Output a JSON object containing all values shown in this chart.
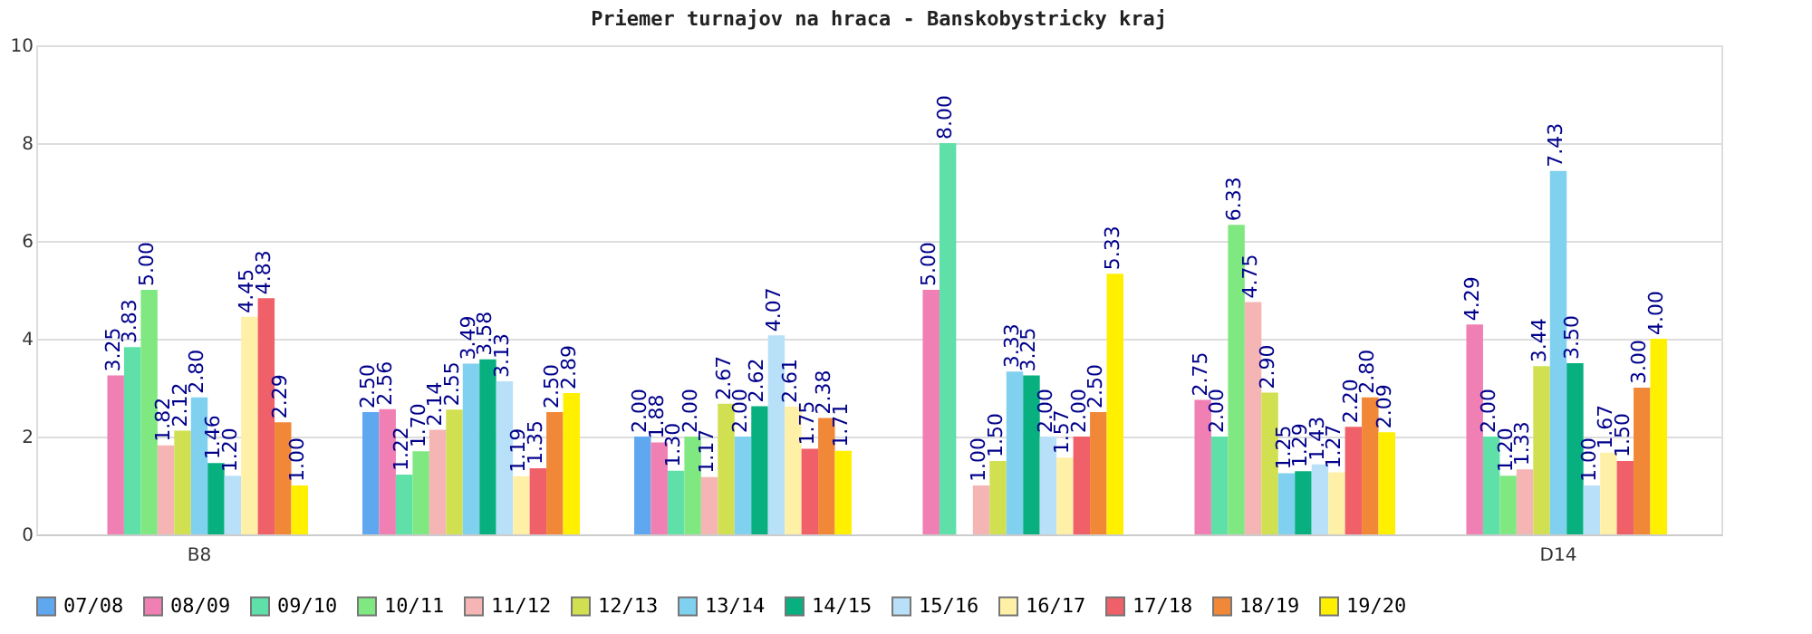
{
  "chart_data": {
    "type": "bar",
    "title": "Priemer turnajov na hraca - Banskobystricky kraj",
    "categories": [
      "B8",
      null,
      null,
      null,
      null,
      "D14"
    ],
    "series": [
      {
        "name": "07/08",
        "color": "#5fa8f0",
        "values": [
          null,
          2.5,
          2.0,
          null,
          null,
          null
        ],
        "value_labels": [
          null,
          "2.50",
          "2.00",
          null,
          null,
          null
        ]
      },
      {
        "name": "08/09",
        "color": "#f07fb4",
        "values": [
          3.25,
          2.56,
          1.88,
          5.0,
          2.75,
          4.29
        ],
        "value_labels": [
          "3.25",
          "2.56",
          "1.88",
          "5.00",
          "2.75",
          "4.29"
        ]
      },
      {
        "name": "09/10",
        "color": "#5fe0a8",
        "values": [
          3.83,
          1.22,
          1.3,
          8.0,
          2.0,
          2.0
        ],
        "value_labels": [
          "3.83",
          "1.22",
          "1.30",
          "8.00",
          "2.00",
          "2.00"
        ]
      },
      {
        "name": "10/11",
        "color": "#80e880",
        "values": [
          5.0,
          1.7,
          2.0,
          null,
          6.33,
          1.2
        ],
        "value_labels": [
          "5.00",
          "1.70",
          "2.00",
          null,
          "6.33",
          "1.20"
        ]
      },
      {
        "name": "11/12",
        "color": "#f5b5b5",
        "values": [
          1.82,
          2.14,
          1.17,
          1.0,
          4.75,
          1.33
        ],
        "value_labels": [
          "1.82",
          "2.14",
          "1.17",
          "1.00",
          "4.75",
          "1.33"
        ]
      },
      {
        "name": "12/13",
        "color": "#d0e050",
        "values": [
          2.12,
          2.55,
          2.67,
          1.5,
          2.9,
          3.44
        ],
        "value_labels": [
          "2.12",
          "2.55",
          "2.67",
          "1.50",
          "2.90",
          "3.44"
        ]
      },
      {
        "name": "13/14",
        "color": "#80d0f0",
        "values": [
          2.8,
          3.49,
          2.0,
          3.33,
          1.25,
          7.43
        ],
        "value_labels": [
          "2.80",
          "3.49",
          "2.00",
          "3.33",
          "1.25",
          "7.43"
        ]
      },
      {
        "name": "14/15",
        "color": "#08b080",
        "values": [
          1.46,
          3.58,
          2.62,
          3.25,
          1.29,
          3.5
        ],
        "value_labels": [
          "1.46",
          "3.58",
          "2.62",
          "3.25",
          "1.29",
          "3.50"
        ]
      },
      {
        "name": "15/16",
        "color": "#b8e0f8",
        "values": [
          1.2,
          3.13,
          4.07,
          2.0,
          1.43,
          1.0
        ],
        "value_labels": [
          "1.20",
          "3.13",
          "4.07",
          "2.00",
          "1.43",
          "1.00"
        ]
      },
      {
        "name": "16/17",
        "color": "#fff0a8",
        "values": [
          4.45,
          1.19,
          2.61,
          1.57,
          1.27,
          1.67
        ],
        "value_labels": [
          "4.45",
          "1.19",
          "2.61",
          "1.57",
          "1.27",
          "1.67"
        ]
      },
      {
        "name": "17/18",
        "color": "#f06068",
        "values": [
          4.83,
          1.35,
          1.75,
          2.0,
          2.2,
          1.5
        ],
        "value_labels": [
          "4.83",
          "1.35",
          "1.75",
          "2.00",
          "2.20",
          "1.50"
        ]
      },
      {
        "name": "18/19",
        "color": "#f08838",
        "values": [
          2.29,
          2.5,
          2.38,
          2.5,
          2.8,
          3.0
        ],
        "value_labels": [
          "2.29",
          "2.50",
          "2.38",
          "2.50",
          "2.80",
          "3.00"
        ]
      },
      {
        "name": "19/20",
        "color": "#fff000",
        "values": [
          1.0,
          2.89,
          1.71,
          5.33,
          2.09,
          4.0
        ],
        "value_labels": [
          "1.00",
          "2.89",
          "1.71",
          "5.33",
          "2.09",
          "4.00"
        ]
      }
    ],
    "ylim": [
      0,
      10
    ],
    "yticks": [
      0,
      2,
      4,
      6,
      8,
      10
    ],
    "grid": "y",
    "legend": "bottom"
  }
}
